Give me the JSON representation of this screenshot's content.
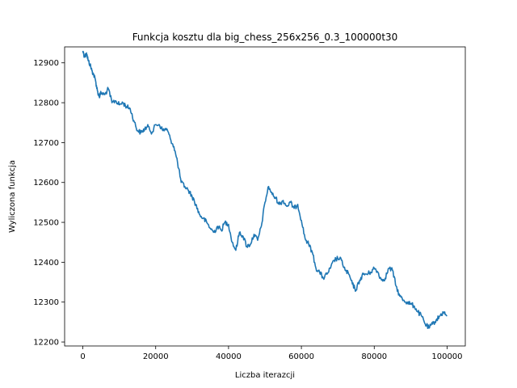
{
  "chart_data": {
    "type": "line",
    "title": "Funkcja kosztu dla big_chess_256x256_0.3_100000t30",
    "xlabel": "Liczba iterazcji",
    "ylabel": "Wyliczona funkcja",
    "xlim": [
      -5000,
      105000
    ],
    "ylim": [
      12190,
      12940
    ],
    "xticks": [
      0,
      20000,
      40000,
      60000,
      80000,
      100000
    ],
    "yticks": [
      12200,
      12300,
      12400,
      12500,
      12600,
      12700,
      12800,
      12900
    ],
    "grid": false,
    "series": [
      {
        "color": "#1f77b4",
        "x": [
          0,
          500,
          1000,
          1500,
          2000,
          2500,
          3000,
          3500,
          4000,
          4500,
          5000,
          6000,
          7000,
          8000,
          9000,
          10000,
          11000,
          12000,
          13000,
          14000,
          15000,
          16000,
          17000,
          18000,
          19000,
          20000,
          21000,
          22000,
          23000,
          24000,
          25000,
          26000,
          27000,
          28000,
          29000,
          30000,
          31000,
          32000,
          33000,
          34000,
          35000,
          36000,
          37000,
          38000,
          39000,
          40000,
          41000,
          42000,
          43000,
          44000,
          45000,
          46000,
          47000,
          48000,
          49000,
          50000,
          51000,
          52000,
          53000,
          54000,
          55000,
          56000,
          57000,
          58000,
          59000,
          60000,
          61000,
          62000,
          63000,
          64000,
          65000,
          66000,
          67000,
          68000,
          69000,
          70000,
          71000,
          72000,
          73000,
          74000,
          75000,
          76000,
          77000,
          78000,
          79000,
          80000,
          81000,
          82000,
          83000,
          84000,
          85000,
          86000,
          87000,
          88000,
          89000,
          90000,
          91000,
          92000,
          93000,
          94000,
          95000,
          96000,
          97000,
          98000,
          99000,
          100000
        ],
        "y": [
          12930,
          12915,
          12925,
          12905,
          12895,
          12880,
          12870,
          12855,
          12830,
          12815,
          12825,
          12820,
          12835,
          12800,
          12805,
          12795,
          12800,
          12790,
          12785,
          12755,
          12730,
          12725,
          12735,
          12740,
          12725,
          12745,
          12745,
          12730,
          12735,
          12710,
          12690,
          12650,
          12600,
          12590,
          12580,
          12565,
          12545,
          12520,
          12510,
          12500,
          12485,
          12475,
          12490,
          12480,
          12500,
          12495,
          12450,
          12430,
          12475,
          12465,
          12440,
          12445,
          12470,
          12455,
          12490,
          12550,
          12590,
          12570,
          12560,
          12545,
          12555,
          12540,
          12550,
          12535,
          12545,
          12505,
          12460,
          12445,
          12425,
          12385,
          12375,
          12360,
          12370,
          12385,
          12405,
          12410,
          12405,
          12380,
          12370,
          12345,
          12330,
          12355,
          12370,
          12370,
          12375,
          12385,
          12375,
          12355,
          12360,
          12385,
          12380,
          12340,
          12315,
          12305,
          12300,
          12295,
          12290,
          12275,
          12265,
          12245,
          12235,
          12245,
          12255,
          12265,
          12275,
          12265
        ]
      }
    ]
  }
}
